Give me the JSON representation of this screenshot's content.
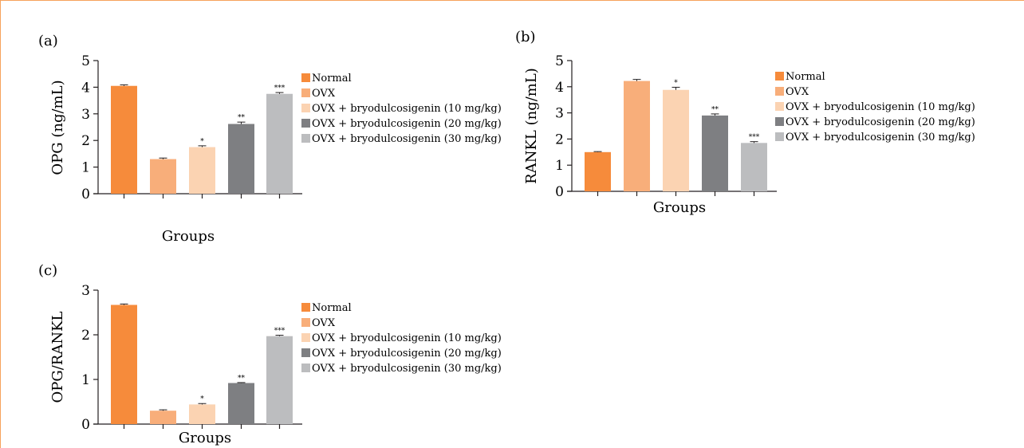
{
  "colors": {
    "Normal": "#f68b3b",
    "OVX": "#f8ae7a",
    "OVX_10": "#fbd3b2",
    "OVX_20": "#7e7f82",
    "OVX_30": "#bcbdbf",
    "axis": "#231f20",
    "frame": "#f6a25c"
  },
  "chart_data": [
    {
      "type": "bar",
      "panel_label": "(a)",
      "xlabel": "Groups",
      "ylabel": "OPG (ng/mL)",
      "ylim": [
        0,
        5
      ],
      "yticks": [
        0,
        1,
        2,
        3,
        4,
        5
      ],
      "categories": [
        "Normal",
        "OVX",
        "OVX + bryodulcosigenin (10 mg/kg)",
        "OVX + bryodulcosigenin (20 mg/kg)",
        "OVX + bryodulcosigenin (30 mg/kg)"
      ],
      "values": [
        4.05,
        1.3,
        1.75,
        2.62,
        3.75
      ],
      "errors": [
        0.04,
        0.04,
        0.05,
        0.07,
        0.05
      ],
      "significance": [
        "",
        "",
        "*",
        "**",
        "***"
      ],
      "legend": [
        "Normal",
        "OVX",
        "OVX + bryodulcosigenin (10 mg/kg)",
        "OVX + bryodulcosigenin (20 mg/kg)",
        "OVX + bryodulcosigenin (30 mg/kg)"
      ],
      "legend_position": "right",
      "grid": false
    },
    {
      "type": "bar",
      "panel_label": "(b)",
      "xlabel": "Groups",
      "ylabel": "RANKL (ng/mL)",
      "ylim": [
        0,
        5
      ],
      "yticks": [
        0,
        1,
        2,
        3,
        4,
        5
      ],
      "categories": [
        "Normal",
        "OVX",
        "OVX + bryodulcosigenin (10 mg/kg)",
        "OVX + bryodulcosigenin (20 mg/kg)",
        "OVX + bryodulcosigenin (30 mg/kg)"
      ],
      "values": [
        1.5,
        4.22,
        3.88,
        2.9,
        1.85
      ],
      "errors": [
        0.02,
        0.06,
        0.1,
        0.06,
        0.05
      ],
      "significance": [
        "",
        "",
        "*",
        "**",
        "***"
      ],
      "legend": [
        "Normal",
        "OVX",
        "OVX + bryodulcosigenin (10 mg/kg)",
        "OVX + bryodulcosigenin (20 mg/kg)",
        "OVX + bryodulcosigenin (30 mg/kg)"
      ],
      "legend_position": "right",
      "grid": false
    },
    {
      "type": "bar",
      "panel_label": "(c)",
      "xlabel": "Groups",
      "ylabel": "OPG/RANKL",
      "ylim": [
        0,
        3
      ],
      "yticks": [
        0,
        1,
        2,
        3
      ],
      "categories": [
        "Normal",
        "OVX",
        "OVX + bryodulcosigenin (10 mg/kg)",
        "OVX + bryodulcosigenin (20 mg/kg)",
        "OVX + bryodulcosigenin (30 mg/kg)"
      ],
      "values": [
        2.67,
        0.3,
        0.44,
        0.92,
        1.97
      ],
      "errors": [
        0.02,
        0.02,
        0.02,
        0.01,
        0.02
      ],
      "significance": [
        "",
        "",
        "*",
        "**",
        "***"
      ],
      "legend": [
        "Normal",
        "OVX",
        "OVX + bryodulcosigenin (10 mg/kg)",
        "OVX + bryodulcosigenin (20 mg/kg)",
        "OVX + bryodulcosigenin (30 mg/kg)"
      ],
      "legend_position": "right",
      "grid": false
    }
  ]
}
